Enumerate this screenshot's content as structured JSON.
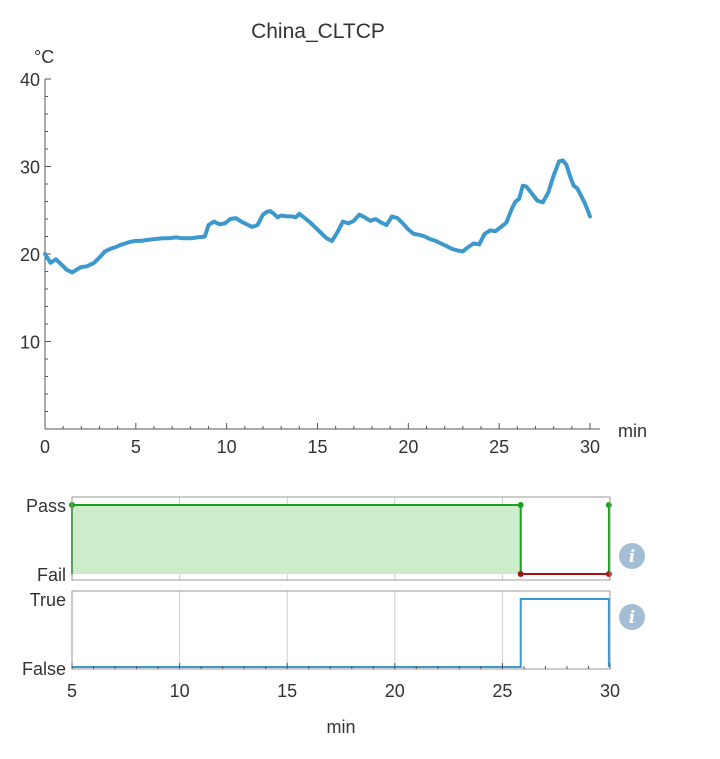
{
  "colors": {
    "line": "#3d98cc",
    "pass_fill": "#cdeccb",
    "pass_line": "#1e9e1e",
    "fail_line": "#a31515",
    "axis": "#555555",
    "grid": "#cccccc",
    "icon": "#a3bdd5"
  },
  "icons": [
    "info-icon",
    "info-icon"
  ],
  "chart_data": [
    {
      "type": "line",
      "title": "China_CLTCP",
      "xlabel": "min",
      "ylabel": "°C",
      "xlim": [
        0,
        30
      ],
      "ylim": [
        0,
        40
      ],
      "xticks": [
        0,
        5,
        10,
        15,
        20,
        25,
        30
      ],
      "yticks": [
        10,
        20,
        30,
        40
      ],
      "grid": false,
      "series": [
        {
          "x": [
            0,
            0.3,
            0.6,
            0.9,
            1.2,
            1.5,
            1.8,
            2.0,
            2.3,
            2.7,
            3.0,
            3.3,
            3.6,
            3.9,
            4.1,
            4.4,
            4.7,
            5.0,
            5.3,
            5.6,
            6.0,
            6.5,
            6.8,
            7.2,
            7.6,
            8.0,
            8.4,
            8.8,
            9.0,
            9.3,
            9.6,
            9.9,
            10.2,
            10.5,
            10.8,
            11.1,
            11.4,
            11.7,
            12.0,
            12.2,
            12.4,
            12.6,
            12.8,
            13.0,
            13.3,
            13.6,
            13.8,
            14.0,
            14.3,
            14.6,
            14.9,
            15.2,
            15.5,
            15.8,
            16.1,
            16.4,
            16.7,
            17.0,
            17.3,
            17.6,
            17.9,
            18.2,
            18.5,
            18.8,
            19.1,
            19.4,
            19.7,
            20.0,
            20.3,
            20.6,
            20.9,
            21.2,
            21.5,
            21.8,
            22.1,
            22.4,
            22.7,
            23.0,
            23.3,
            23.6,
            23.9,
            24.2,
            24.5,
            24.8,
            25.1,
            25.4,
            25.7,
            25.9,
            26.1,
            26.3,
            26.5,
            26.8,
            27.1,
            27.4,
            27.7,
            28.0,
            28.3,
            28.5,
            28.7,
            28.9,
            29.1,
            29.3,
            29.5,
            29.7,
            29.85,
            30.0
          ],
          "y": [
            20.0,
            19.0,
            19.4,
            18.8,
            18.2,
            17.9,
            18.3,
            18.5,
            18.6,
            19.0,
            19.6,
            20.3,
            20.6,
            20.8,
            21.0,
            21.2,
            21.4,
            21.5,
            21.5,
            21.6,
            21.7,
            21.8,
            21.8,
            21.9,
            21.8,
            21.8,
            21.9,
            22.0,
            23.3,
            23.7,
            23.4,
            23.5,
            24.0,
            24.1,
            23.7,
            23.4,
            23.1,
            23.3,
            24.5,
            24.8,
            24.9,
            24.6,
            24.2,
            24.4,
            24.3,
            24.3,
            24.2,
            24.6,
            24.1,
            23.6,
            23.0,
            22.4,
            21.8,
            21.5,
            22.5,
            23.7,
            23.5,
            23.8,
            24.5,
            24.2,
            23.8,
            24.0,
            23.6,
            23.3,
            24.3,
            24.1,
            23.5,
            22.8,
            22.3,
            22.2,
            22.0,
            21.7,
            21.5,
            21.2,
            20.9,
            20.6,
            20.4,
            20.3,
            20.8,
            21.2,
            21.1,
            22.3,
            22.7,
            22.6,
            23.1,
            23.6,
            25.2,
            26.0,
            26.3,
            27.8,
            27.7,
            26.9,
            26.1,
            25.9,
            27.0,
            29.0,
            30.6,
            30.7,
            30.2,
            28.9,
            27.8,
            27.5,
            26.7,
            25.9,
            25.1,
            24.3
          ]
        }
      ]
    },
    {
      "type": "area",
      "xlabel": "",
      "xlim": [
        5,
        30
      ],
      "xticks": [
        5,
        10,
        15,
        20,
        25,
        30
      ],
      "yticks": [
        "Pass",
        "Fail"
      ],
      "grid": true,
      "pass_interval": [
        5,
        25.85
      ],
      "fail_interval": [
        25.85,
        29.95
      ]
    },
    {
      "type": "line",
      "xlabel": "min",
      "xlim": [
        5,
        30
      ],
      "xticks": [
        5,
        10,
        15,
        20,
        25,
        30
      ],
      "yticks": [
        "True",
        "False"
      ],
      "grid": true,
      "series": [
        {
          "x": [
            5,
            25.85,
            25.85,
            29.95,
            29.95
          ],
          "y": [
            0,
            0,
            1,
            1,
            0
          ]
        }
      ]
    }
  ]
}
